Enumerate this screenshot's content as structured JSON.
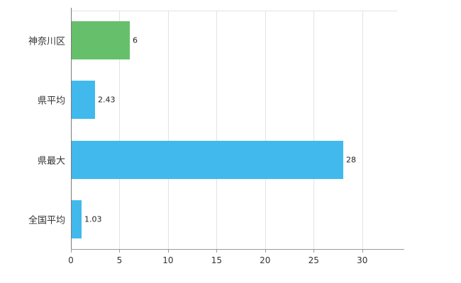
{
  "chart_data": {
    "type": "bar",
    "orientation": "horizontal",
    "title": "",
    "xlabel": "",
    "ylabel": "",
    "categories": [
      "神奈川区",
      "県平均",
      "県最大",
      "全国平均"
    ],
    "values": [
      6,
      2.43,
      28,
      1.03
    ],
    "value_labels": [
      "6",
      "2.43",
      "28",
      "1.03"
    ],
    "bar_colors": [
      "#66bf6b",
      "#41b9ec",
      "#41b9ec",
      "#41b9ec"
    ],
    "xlim": [
      0,
      33.6
    ],
    "xticks": [
      0,
      5,
      10,
      15,
      20,
      25,
      30
    ],
    "grid": "vertical",
    "legend_position": "none",
    "colors": {
      "grid": "#e3e3e3",
      "axis": "#9a9a9a",
      "text": "#333333"
    }
  }
}
